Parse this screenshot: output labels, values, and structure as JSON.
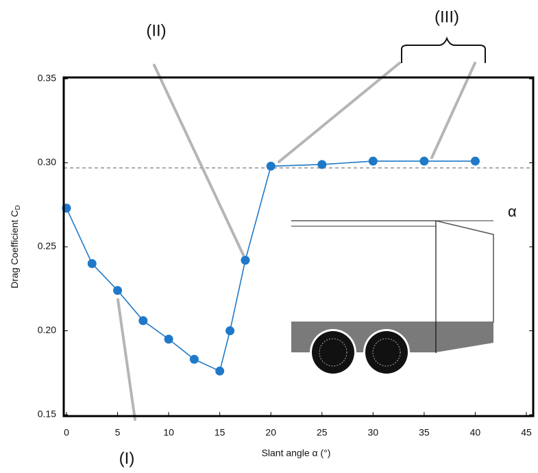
{
  "chart_data": {
    "type": "line",
    "ylabel": "Drag Coefficient C",
    "ylabel_subscript": "D",
    "xlabel": "Slant angle α (°)",
    "x": [
      0,
      2.5,
      5,
      7.5,
      10,
      12.5,
      15,
      16,
      17.5,
      20,
      25,
      30,
      35,
      40
    ],
    "series": [
      {
        "color": "#1f78c8",
        "values": [
          0.273,
          0.24,
          0.224,
          0.206,
          0.195,
          0.183,
          0.176,
          0.2,
          0.242,
          0.298,
          0.299,
          0.301,
          0.301,
          0.301
        ]
      }
    ],
    "reference_line": 0.297,
    "xlim": [
      0,
      45
    ],
    "ylim": [
      0.15,
      0.35
    ],
    "xticks": [
      0,
      5,
      10,
      15,
      20,
      25,
      30,
      35,
      40,
      45
    ],
    "yticks": [
      0.15,
      {
        "value": 0.2,
        "label": "0.20"
      },
      0.25,
      {
        "value": 0.3,
        "label": "0.30"
      },
      0.35
    ],
    "annotations": [
      "(I)",
      "(II)",
      "(III)"
    ],
    "inset_label": "α"
  }
}
